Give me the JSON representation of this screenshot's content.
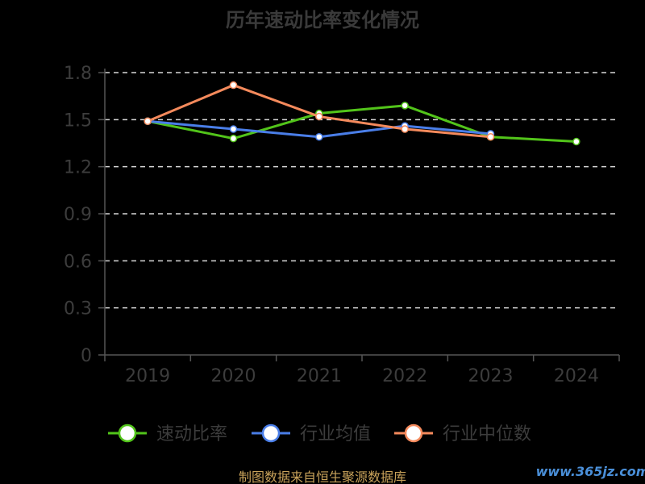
{
  "chart_data": {
    "type": "line",
    "title": "历年速动比率变化情况",
    "categories": [
      "2019",
      "2020",
      "2021",
      "2022",
      "2023",
      "2024"
    ],
    "ylim": [
      0,
      1.8
    ],
    "yticks": [
      "0",
      "0.3",
      "0.6",
      "0.9",
      "1.2",
      "1.5",
      "1.8"
    ],
    "grid": true,
    "legend_position": "bottom",
    "series": [
      {
        "name": "速动比率",
        "color": "#52c41a",
        "values": [
          1.49,
          1.38,
          1.54,
          1.59,
          1.39,
          1.36
        ]
      },
      {
        "name": "行业均值",
        "color": "#4a7ee8",
        "values": [
          1.49,
          1.44,
          1.39,
          1.46,
          1.41,
          null
        ]
      },
      {
        "name": "行业中位数",
        "color": "#f58a5c",
        "values": [
          1.49,
          1.72,
          1.52,
          1.44,
          1.39,
          null
        ]
      }
    ]
  },
  "footer": {
    "source": "制图数据来自恒生聚源数据库",
    "watermark": "www.365jz.com"
  }
}
